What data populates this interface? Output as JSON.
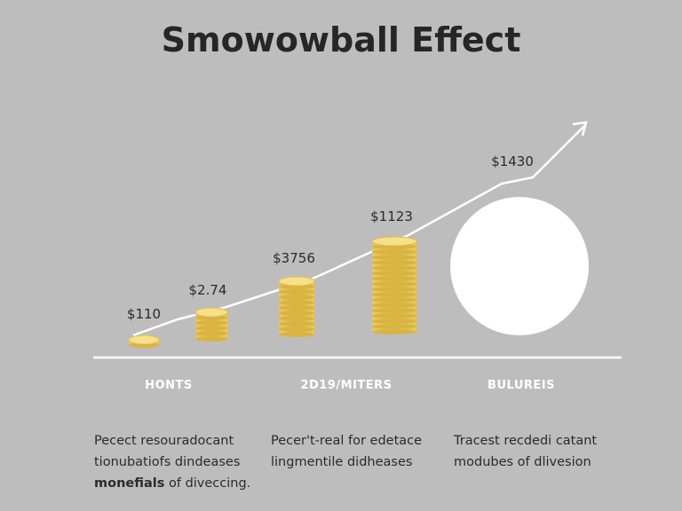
{
  "title": "Smowowball Effect",
  "amounts": [
    "$110",
    "$2.74",
    "$3756",
    "$1123",
    "$1430"
  ],
  "columns": [
    {
      "label": "HONTS",
      "lines": [
        "Pecect resouradocant",
        "tionubatiofs dindeases"
      ],
      "bold": "monefials",
      "last": " of diveccing."
    },
    {
      "label": "2D19/MITERS",
      "lines": [
        "Pecer't-real for edetace",
        "lingmentile didheases"
      ]
    },
    {
      "label": "BULUREIS",
      "lines": [
        "Tracest recdedi catant",
        "modubes of dlivesion"
      ]
    }
  ]
}
